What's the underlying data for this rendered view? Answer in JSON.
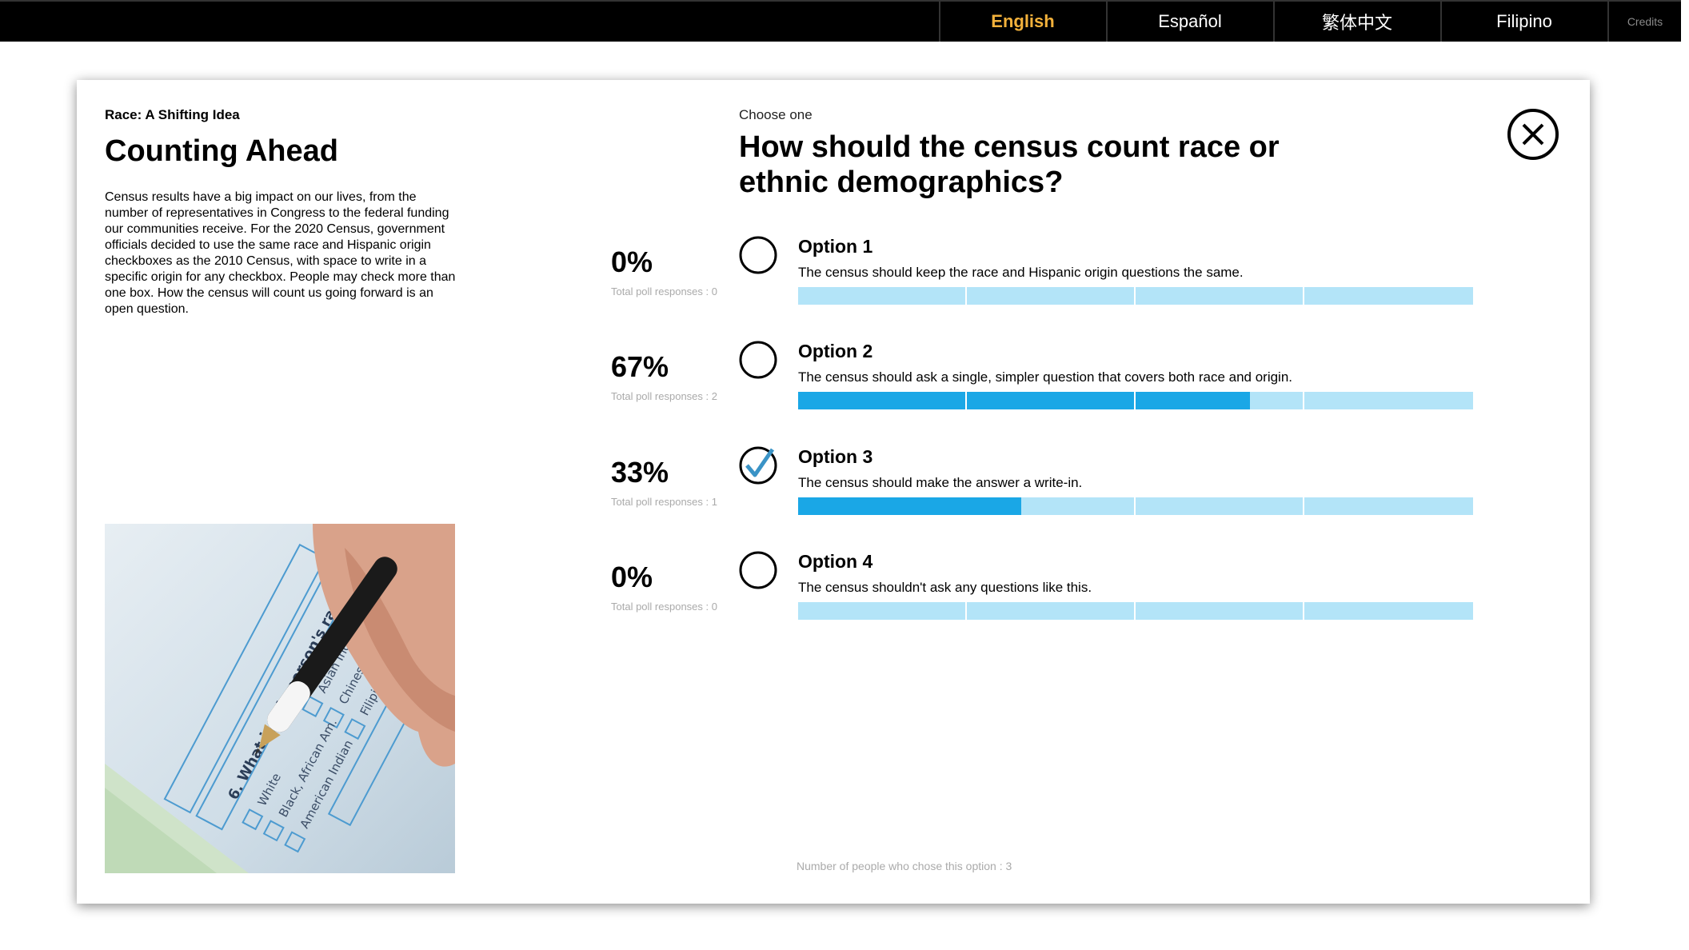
{
  "languages": [
    {
      "label": "English",
      "active": true
    },
    {
      "label": "Español",
      "active": false
    },
    {
      "label": "繁体中文",
      "active": false
    },
    {
      "label": "Filipino",
      "active": false
    }
  ],
  "credits_label": "Credits",
  "left": {
    "kicker": "Race: A Shifting Idea",
    "title": "Counting Ahead",
    "intro": "Census results have a big impact on our lives, from the number of representatives in Congress to the federal funding our communities receive. For the 2020 Census, government officials decided to use the same race and Hispanic origin checkboxes as the 2010 Census, with space to write in a specific origin for any checkbox. People may check more than one box. How the census will count us going forward is an open question."
  },
  "poll": {
    "choose_label": "Choose one",
    "question": "How should the census count race or ethnic demographics?",
    "options": [
      {
        "percent": "0%",
        "responses": "Total poll responses : 0",
        "label": "Option 1",
        "description": "The census should keep the race and Hispanic origin questions the same.",
        "fill": 0,
        "selected": false
      },
      {
        "percent": "67%",
        "responses": "Total poll responses : 2",
        "label": "Option 2",
        "description": "The census should ask a single, simpler question that covers both race and origin.",
        "fill": 0.67,
        "selected": false
      },
      {
        "percent": "33%",
        "responses": "Total poll responses : 1",
        "label": "Option 3",
        "description": "The census should make the answer a write-in.",
        "fill": 0.33,
        "selected": true
      },
      {
        "percent": "0%",
        "responses": "Total poll responses : 0",
        "label": "Option 4",
        "description": "The census shouldn't ask any questions like this.",
        "fill": 0,
        "selected": false
      }
    ],
    "footer": "Number of people who chose this option : 3"
  },
  "colors": {
    "accent": "#f2b13b",
    "bar_bg": "#b3e4f8",
    "bar_fill": "#1aa7e6",
    "check": "#3a93c6"
  },
  "icons": {
    "close": "close-icon",
    "radio": "radio-icon",
    "check": "checkmark-icon"
  }
}
